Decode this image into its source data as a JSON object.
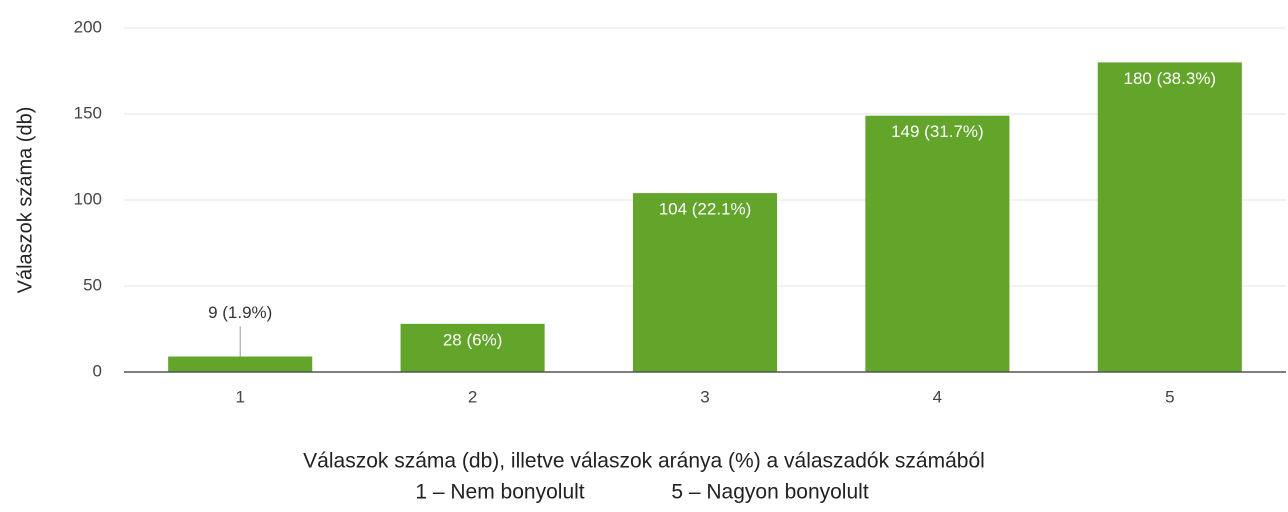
{
  "chart_data": {
    "type": "bar",
    "ylabel": "Válaszok száma (db)",
    "xlabel": "Válaszok száma (db), illetve válaszok aránya (%) a válaszadók számából",
    "annotations": [
      "1 – Nem bonyolult",
      "5 – Nagyon bonyolult"
    ],
    "categories": [
      "1",
      "2",
      "3",
      "4",
      "5"
    ],
    "values": [
      9,
      28,
      104,
      149,
      180
    ],
    "value_labels": [
      "9 (1.9%)",
      "28 (6%)",
      "104 (22.1%)",
      "149 (31.7%)",
      "180 (38.3%)"
    ],
    "color": "#63a52a",
    "ylim": [
      0,
      200
    ],
    "yticks": [
      0,
      50,
      100,
      150,
      200
    ],
    "grid": true
  }
}
